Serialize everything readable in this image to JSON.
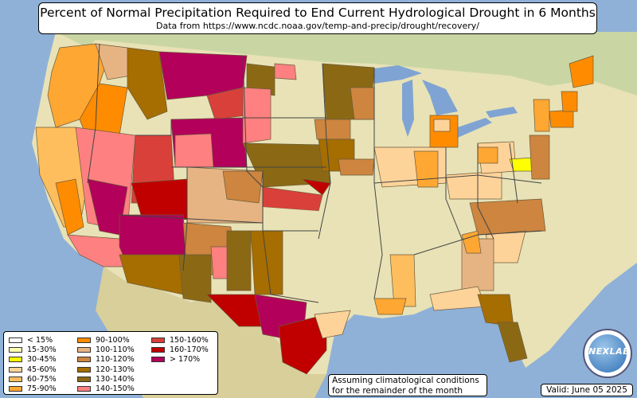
{
  "title": {
    "main": "Percent of Normal Precipitation Required to End Current Hydrological Drought in 6 Months",
    "source": "Data from https://www.ncdc.noaa.gov/temp-and-precip/drought/recovery/"
  },
  "legend": {
    "items": [
      {
        "label": "< 15%",
        "color": "#ffffff"
      },
      {
        "label": "15-30%",
        "color": "#ffffb2"
      },
      {
        "label": "30-45%",
        "color": "#ffff00"
      },
      {
        "label": "45-60%",
        "color": "#fed39a"
      },
      {
        "label": "60-75%",
        "color": "#ffbe5e"
      },
      {
        "label": "75-90%",
        "color": "#ffa733"
      },
      {
        "label": "90-100%",
        "color": "#ff8c00"
      },
      {
        "label": "100-110%",
        "color": "#e6b483"
      },
      {
        "label": "110-120%",
        "color": "#cd853f"
      },
      {
        "label": "120-130%",
        "color": "#a66d00"
      },
      {
        "label": "130-140%",
        "color": "#8b6914"
      },
      {
        "label": "140-150%",
        "color": "#ff8080"
      },
      {
        "label": "150-160%",
        "color": "#d9403a"
      },
      {
        "label": "160-170%",
        "color": "#c00000"
      },
      {
        "label": "> 170%",
        "color": "#b3005a"
      }
    ]
  },
  "note": {
    "line1": "Assuming climatological conditions",
    "line2": "for the remainder of the month"
  },
  "valid": "Valid: June 05 2025",
  "logo": {
    "text": "NEXLAB",
    "icon": "nexlab-globe-logo"
  }
}
